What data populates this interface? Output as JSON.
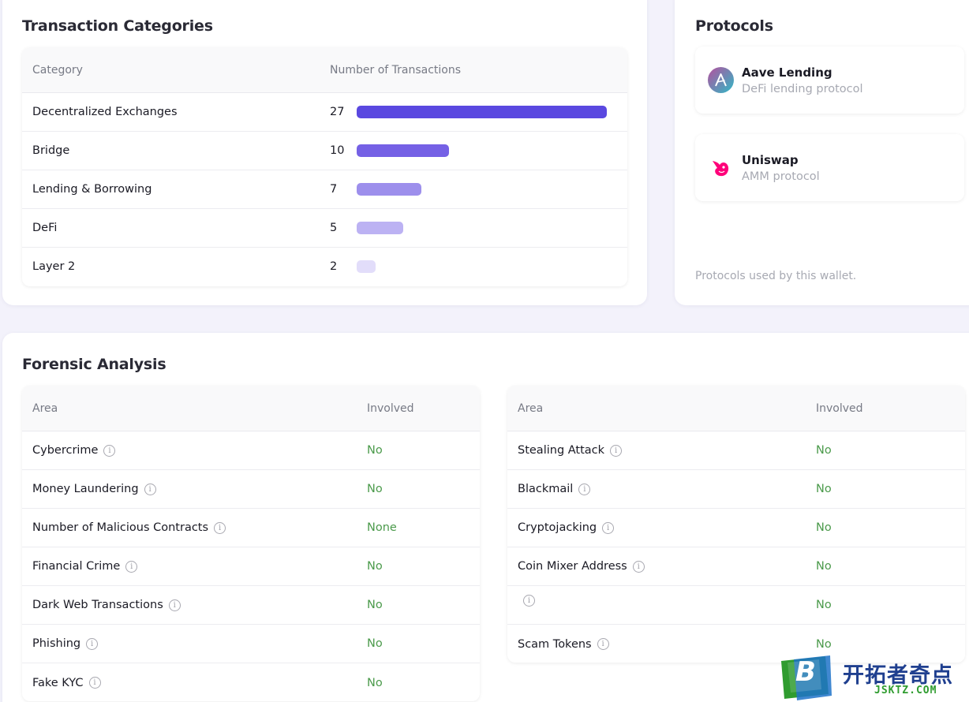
{
  "transaction_categories": {
    "title": "Transaction Categories",
    "col_category": "Category",
    "col_count": "Number of Transactions",
    "rows": [
      {
        "category": "Decentralized Exchanges",
        "count": 27,
        "color": "#5a48e0"
      },
      {
        "category": "Bridge",
        "count": 10,
        "color": "#7561e5"
      },
      {
        "category": "Lending & Borrowing",
        "count": 7,
        "color": "#9d8fec"
      },
      {
        "category": "DeFi",
        "count": 5,
        "color": "#bcb2f3"
      },
      {
        "category": "Layer 2",
        "count": 2,
        "color": "#e2ddfa"
      }
    ]
  },
  "protocols": {
    "title": "Protocols",
    "items": [
      {
        "name": "Aave Lending",
        "desc": "DeFi lending protocol",
        "icon": "aave-icon"
      },
      {
        "name": "Uniswap",
        "desc": "AMM protocol",
        "icon": "uniswap-icon"
      }
    ],
    "footer": "Protocols used by this wallet."
  },
  "forensic": {
    "title": "Forensic Analysis",
    "col_area": "Area",
    "col_involved": "Involved",
    "left_rows": [
      {
        "area": "Cybercrime",
        "involved": "No"
      },
      {
        "area": "Money Laundering",
        "involved": "No"
      },
      {
        "area": "Number of Malicious Contracts",
        "involved": "None"
      },
      {
        "area": "Financial Crime",
        "involved": "No"
      },
      {
        "area": "Dark Web Transactions",
        "involved": "No"
      },
      {
        "area": "Phishing",
        "involved": "No"
      },
      {
        "area": "Fake KYC",
        "involved": "No"
      }
    ],
    "right_rows": [
      {
        "area": "Stealing Attack",
        "involved": "No"
      },
      {
        "area": "Blackmail",
        "involved": "No"
      },
      {
        "area": "Cryptojacking",
        "involved": "No"
      },
      {
        "area": "Coin Mixer Address",
        "involved": "No"
      },
      {
        "area": "",
        "involved": "No"
      },
      {
        "area": "Scam Tokens",
        "involved": "No"
      }
    ]
  },
  "watermark": {
    "letter": "B",
    "cn_text": "开拓者奇点",
    "url_text": "JSKTZ.COM"
  },
  "colors": {
    "accent": "#5a48e0",
    "status_green": "#4b9a4b"
  }
}
